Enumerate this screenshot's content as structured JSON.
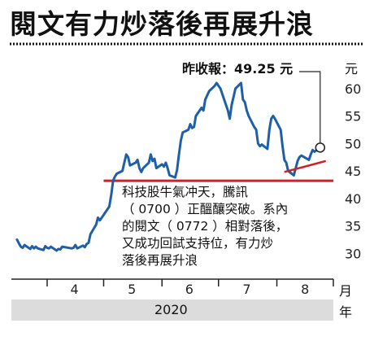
{
  "headline": "閱文有力炒落後再展升浪",
  "annotation_lines": [
    "科技股牛氣冲天，騰訊",
    "（ 0700 ）正醞釀突破。系內",
    "的閱文（ 0772 ）相對落後，",
    "又成功回試支持位，有力炒",
    "落後再展升浪"
  ],
  "callout": "昨收報：49.25 元",
  "colors": {
    "line": "#1f5fa8",
    "support": "#d21f26",
    "band": "#dcdcdc"
  },
  "chart_data": {
    "type": "line",
    "title": "",
    "xlabel": "月",
    "ylabel": "元",
    "year": "2020",
    "ylim": [
      25,
      65
    ],
    "yticks": [
      30,
      35,
      40,
      45,
      50,
      55,
      60
    ],
    "xticks": [
      "4",
      "5",
      "6",
      "7",
      "8"
    ],
    "grid": false,
    "last_close": 49.25,
    "series": [
      {
        "name": "",
        "x": [
          "2020-03-16",
          "2020-03-17",
          "2020-03-18",
          "2020-03-19",
          "2020-03-20",
          "2020-03-23",
          "2020-03-24",
          "2020-03-25",
          "2020-03-26",
          "2020-03-27",
          "2020-03-30",
          "2020-03-31",
          "2020-04-01",
          "2020-04-02",
          "2020-04-03",
          "2020-04-06",
          "2020-04-07",
          "2020-04-08",
          "2020-04-09",
          "2020-04-14",
          "2020-04-15",
          "2020-04-16",
          "2020-04-17",
          "2020-04-20",
          "2020-04-21",
          "2020-04-22",
          "2020-04-23",
          "2020-04-24",
          "2020-04-27",
          "2020-04-28",
          "2020-04-29",
          "2020-05-04",
          "2020-05-05",
          "2020-05-06",
          "2020-05-07",
          "2020-05-08",
          "2020-05-11",
          "2020-05-12",
          "2020-05-13",
          "2020-05-14",
          "2020-05-15",
          "2020-05-18",
          "2020-05-19",
          "2020-05-20",
          "2020-05-21",
          "2020-05-22",
          "2020-05-25",
          "2020-05-26",
          "2020-05-27",
          "2020-05-28",
          "2020-05-29",
          "2020-06-01",
          "2020-06-02",
          "2020-06-03",
          "2020-06-04",
          "2020-06-05",
          "2020-06-08",
          "2020-06-09",
          "2020-06-10",
          "2020-06-11",
          "2020-06-12",
          "2020-06-15",
          "2020-06-16",
          "2020-06-17",
          "2020-06-18",
          "2020-06-19",
          "2020-06-22",
          "2020-06-23",
          "2020-06-24",
          "2020-06-26",
          "2020-06-29",
          "2020-06-30",
          "2020-07-02",
          "2020-07-03",
          "2020-07-06",
          "2020-07-07",
          "2020-07-08",
          "2020-07-09",
          "2020-07-10",
          "2020-07-13",
          "2020-07-14",
          "2020-07-15",
          "2020-07-16",
          "2020-07-17",
          "2020-07-20",
          "2020-07-21",
          "2020-07-22",
          "2020-07-23",
          "2020-07-24",
          "2020-07-27",
          "2020-07-28",
          "2020-07-29",
          "2020-07-30",
          "2020-07-31",
          "2020-08-03",
          "2020-08-04",
          "2020-08-05",
          "2020-08-06",
          "2020-08-07",
          "2020-08-10",
          "2020-08-11",
          "2020-08-12",
          "2020-08-13",
          "2020-08-14",
          "2020-08-17",
          "2020-08-18",
          "2020-08-19",
          "2020-08-20",
          "2020-08-21",
          "2020-08-24"
        ],
        "values": [
          32.5,
          31.8,
          31.2,
          31.0,
          31.5,
          30.8,
          31.3,
          30.9,
          31.2,
          30.9,
          30.6,
          31.3,
          31.0,
          30.9,
          31.2,
          30.5,
          30.8,
          30.7,
          31.2,
          30.9,
          31.0,
          31.5,
          30.9,
          31.4,
          31.1,
          31.7,
          31.9,
          33.5,
          35.2,
          36.5,
          36.0,
          38.5,
          40.5,
          43.2,
          44.0,
          44.5,
          45.0,
          46.5,
          48.0,
          47.5,
          46.0,
          46.5,
          47.0,
          45.5,
          44.8,
          45.5,
          46.5,
          48.0,
          46.8,
          47.2,
          45.5,
          46.2,
          45.8,
          46.5,
          45.5,
          44.2,
          43.8,
          45.2,
          48.0,
          50.5,
          52.0,
          52.5,
          53.5,
          52.8,
          53.0,
          55.0,
          56.5,
          56.0,
          58.0,
          59.5,
          60.5,
          61.0,
          60.0,
          59.0,
          56.0,
          54.5,
          57.0,
          58.5,
          60.0,
          61.0,
          58.0,
          57.5,
          56.0,
          55.0,
          53.0,
          52.5,
          50.0,
          49.5,
          49.8,
          49.0,
          52.5,
          54.5,
          55.0,
          54.5,
          52.5,
          49.5,
          47.0,
          46.5,
          45.0,
          44.2,
          45.5,
          46.8,
          47.5,
          47.8,
          47.2,
          47.0,
          48.0,
          48.8,
          48.5,
          49.25
        ]
      }
    ],
    "support": {
      "x": [
        "2020-05-01",
        "2020-08-31"
      ],
      "y": [
        43.2,
        43.2
      ]
    },
    "trendline": {
      "x": [
        "2020-08-05",
        "2020-08-27"
      ],
      "y": [
        44.8,
        46.8
      ]
    }
  }
}
